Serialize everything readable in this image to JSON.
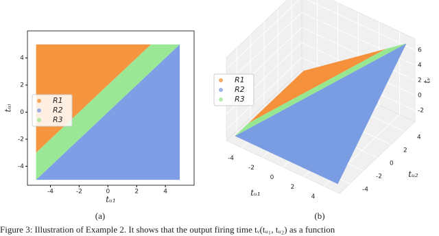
{
  "caption": "Figure 3: Illustration of Example 2. It shows that the output firing time tᵥ(tᵤ₁, tᵤ₂) as a function",
  "chart_data": [
    {
      "type": "region",
      "subcaption": "(a)",
      "xlabel": "tᵤ₁",
      "ylabel": "tᵤᵢ",
      "xlim": [
        -5.6,
        6.0
      ],
      "ylim": [
        -5.4,
        6.0
      ],
      "xticks": [
        -4,
        -2,
        0,
        2,
        4
      ],
      "yticks": [
        -4,
        -2,
        0,
        2,
        4
      ],
      "legend": "center left",
      "series": [
        {
          "name": "R1",
          "color": "#f5892a",
          "x": [
            -5,
            -5,
            3
          ],
          "y": [
            -3,
            5,
            5
          ]
        },
        {
          "name": "R2",
          "color": "#7095e2",
          "x": [
            -5,
            5,
            5
          ],
          "y": [
            -5,
            5,
            -5
          ]
        },
        {
          "name": "R3",
          "color": "#8fe68a",
          "x": [
            -5,
            -5,
            3,
            5
          ],
          "y": [
            -5,
            -3,
            5,
            5
          ]
        }
      ]
    },
    {
      "type": "surface3d",
      "subcaption": "(b)",
      "xlabel": "tᵤ₁",
      "ylabel": "tᵤ₂",
      "zlabel": "tᵥ",
      "xlim": [
        -5.5,
        5.5
      ],
      "ylim": [
        -5.5,
        5.5
      ],
      "zlim": [
        -3.5,
        7.5
      ],
      "xticks": [
        -4,
        -2,
        0,
        2,
        4
      ],
      "yticks": [
        -4,
        -2,
        0,
        2,
        4
      ],
      "zticks": [
        -2,
        0,
        2,
        4,
        6
      ],
      "legend": "center left",
      "series": [
        {
          "name": "R1",
          "color": "#f5892a",
          "x": [
            -5,
            -5,
            3
          ],
          "y": [
            -3,
            5,
            5
          ],
          "z": [
            -3,
            -3,
            5
          ]
        },
        {
          "name": "R2",
          "color": "#7095e2",
          "x": [
            -5,
            5,
            5
          ],
          "y": [
            -5,
            5,
            -5
          ],
          "z": [
            -3,
            7,
            -3
          ]
        },
        {
          "name": "R3",
          "color": "#8fe68a",
          "x": [
            -5,
            -5,
            3,
            5
          ],
          "y": [
            -5,
            -3,
            5,
            5
          ],
          "z": [
            -3,
            -3,
            5,
            7
          ]
        }
      ]
    }
  ]
}
